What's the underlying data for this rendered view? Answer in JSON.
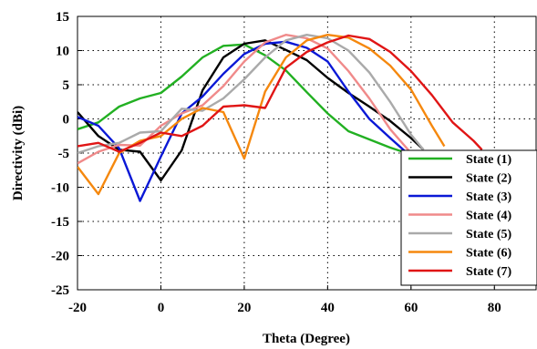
{
  "chart_data": {
    "type": "line",
    "title": "",
    "xlabel": "Theta (Degree)",
    "ylabel": "Directivity (dBi)",
    "xlim": [
      -20,
      90
    ],
    "ylim": [
      -25,
      15
    ],
    "xticks": [
      -20,
      0,
      20,
      40,
      60,
      80
    ],
    "yticks": [
      -25,
      -20,
      -15,
      -10,
      -5,
      0,
      5,
      10,
      15
    ],
    "grid": true,
    "legend_position": "bottom-right",
    "series": [
      {
        "name": "State (1)",
        "color": "#22b022",
        "x": [
          -20,
          -15,
          -10,
          -5,
          0,
          5,
          10,
          15,
          20,
          25,
          30,
          35,
          40,
          45,
          50,
          55,
          60
        ],
        "y": [
          -1.5,
          -0.5,
          1.8,
          3.0,
          3.8,
          6.2,
          9.0,
          10.7,
          10.9,
          9.3,
          7.1,
          3.9,
          0.8,
          -1.8,
          -3.0,
          -4.2,
          -5.2
        ]
      },
      {
        "name": "State (2)",
        "color": "#000000",
        "x": [
          -20,
          -15,
          -10,
          -5,
          0,
          5,
          10,
          15,
          20,
          25,
          30,
          35,
          40,
          45,
          50,
          55,
          60,
          63
        ],
        "y": [
          1.0,
          -2.5,
          -4.5,
          -4.8,
          -9.0,
          -4.6,
          4.2,
          9.0,
          11.0,
          11.5,
          10.1,
          8.6,
          6.0,
          3.8,
          1.8,
          -0.3,
          -2.8,
          -4.5
        ]
      },
      {
        "name": "State (3)",
        "color": "#0a18d6",
        "x": [
          -20,
          -15,
          -10,
          -5,
          0,
          5,
          10,
          15,
          20,
          25,
          30,
          35,
          40,
          45,
          50,
          55,
          60
        ],
        "y": [
          0.3,
          -1.0,
          -4.3,
          -12.0,
          -5.5,
          0.8,
          3.3,
          6.6,
          9.5,
          11.0,
          11.3,
          10.4,
          8.4,
          4.0,
          0.0,
          -2.8,
          -5.5
        ]
      },
      {
        "name": "State (4)",
        "color": "#f08a8a",
        "x": [
          -20,
          -15,
          -10,
          -5,
          0,
          5,
          10,
          15,
          20,
          25,
          30,
          35,
          40,
          45,
          50,
          55,
          60
        ],
        "y": [
          -6.5,
          -4.8,
          -3.8,
          -3.9,
          -1.0,
          0.8,
          2.0,
          4.8,
          8.4,
          11.2,
          12.3,
          11.8,
          10.3,
          7.0,
          3.0,
          -1.5,
          -5.0
        ]
      },
      {
        "name": "State (5)",
        "color": "#aaaaaa",
        "x": [
          -20,
          -15,
          -10,
          -5,
          0,
          5,
          10,
          15,
          20,
          25,
          30,
          35,
          40,
          45,
          50,
          55,
          60,
          63
        ],
        "y": [
          -5.0,
          -4.0,
          -3.5,
          -2.0,
          -1.8,
          1.5,
          1.2,
          3.0,
          5.8,
          9.0,
          11.5,
          12.3,
          11.8,
          10.0,
          6.8,
          2.5,
          -2.3,
          -4.5
        ]
      },
      {
        "name": "State (6)",
        "color": "#f5880e",
        "x": [
          -20,
          -15,
          -10,
          -5,
          0,
          5,
          10,
          15,
          20,
          25,
          30,
          35,
          40,
          45,
          50,
          55,
          60,
          65,
          68
        ],
        "y": [
          -7.0,
          -11.0,
          -5.0,
          -3.2,
          -2.5,
          0.0,
          1.6,
          1.0,
          -5.8,
          4.0,
          9.0,
          11.5,
          12.3,
          11.9,
          10.3,
          7.8,
          4.3,
          -1.0,
          -4.0
        ]
      },
      {
        "name": "State (7)",
        "color": "#e01515",
        "x": [
          -20,
          -15,
          -10,
          -5,
          0,
          5,
          10,
          15,
          20,
          25,
          30,
          35,
          40,
          45,
          50,
          55,
          60,
          65,
          70,
          75,
          77
        ],
        "y": [
          -4.0,
          -3.5,
          -4.8,
          -3.5,
          -2.0,
          -2.5,
          -1.0,
          1.8,
          2.0,
          1.6,
          7.5,
          9.8,
          11.2,
          12.2,
          11.7,
          9.8,
          7.0,
          3.5,
          -0.5,
          -3.2,
          -4.5
        ]
      }
    ]
  }
}
